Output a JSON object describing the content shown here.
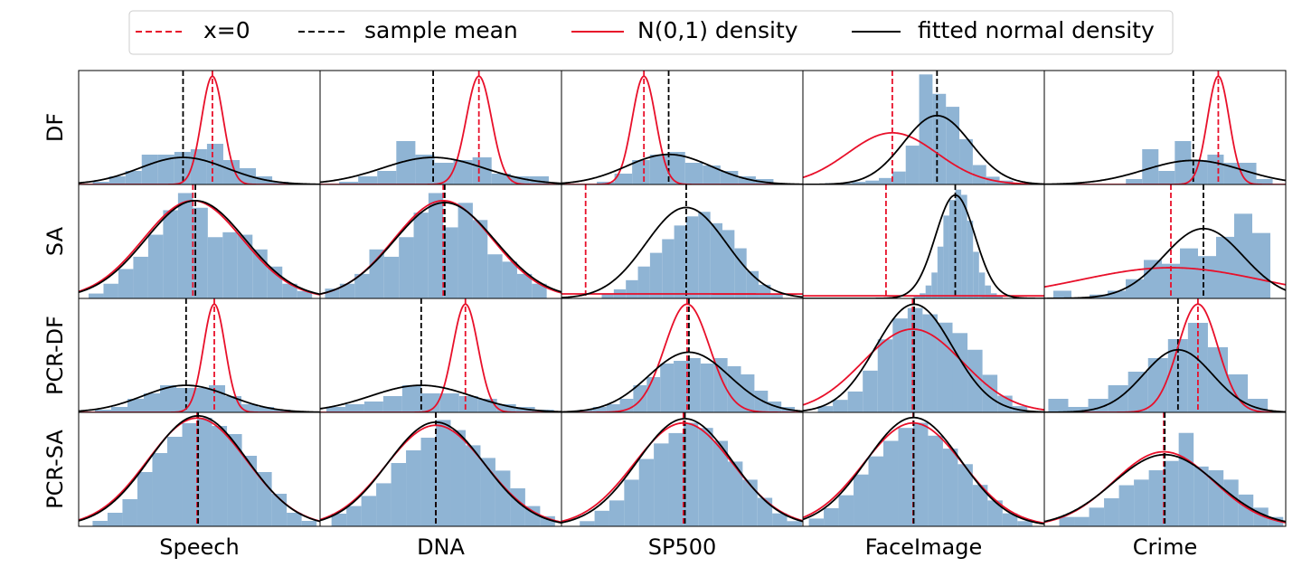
{
  "legend": [
    {
      "name": "x=0",
      "color": "#e8102a",
      "dashed": true
    },
    {
      "name": "sample mean",
      "color": "#000000",
      "dashed": true
    },
    {
      "name": "N(0,1) density",
      "color": "#e8102a",
      "dashed": false
    },
    {
      "name": "fitted normal density",
      "color": "#000000",
      "dashed": false
    }
  ],
  "rows": [
    "DF",
    "SA",
    "PCR-DF",
    "PCR-SA"
  ],
  "columns": [
    "Speech",
    "DNA",
    "SP500",
    "FaceImage",
    "Crime"
  ],
  "hist_color": "#8fb4d4",
  "chart_data": [
    {
      "type": "histogram",
      "xlim": [
        -12.3,
        9.9
      ],
      "ylim": [
        0,
        0.42
      ],
      "x_zero": 0,
      "mean": -2.7,
      "reference": {
        "mu": 0,
        "sigma": 1
      },
      "fitted": {
        "mu": -2.7,
        "sigma": 4
      },
      "bins": [
        -11,
        -9.5,
        -8,
        -6.5,
        -5,
        -3.5,
        -2,
        -0.5,
        1,
        2.5,
        4,
        5.5,
        7
      ],
      "values": [
        0.01,
        0.03,
        0.05,
        0.11,
        0.11,
        0.12,
        0.13,
        0.15,
        0.09,
        0.06,
        0.03,
        0.01
      ]
    },
    {
      "type": "histogram",
      "xlim": [
        -12.5,
        6.5
      ],
      "ylim": [
        0,
        0.42
      ],
      "x_zero": 0,
      "mean": -3.6,
      "reference": {
        "mu": 0,
        "sigma": 1
      },
      "fitted": {
        "mu": -3.6,
        "sigma": 4
      },
      "bins": [
        -11,
        -9.5,
        -8,
        -6.5,
        -5,
        -3.5,
        -2,
        -0.5,
        1,
        2.5,
        4,
        5.5
      ],
      "values": [
        0.01,
        0.03,
        0.05,
        0.16,
        0.11,
        0.08,
        0.09,
        0.1,
        0.04,
        0.03,
        0.03
      ]
    },
    {
      "type": "histogram",
      "xlim": [
        -7,
        13.5
      ],
      "ylim": [
        0,
        0.42
      ],
      "x_zero": 0,
      "mean": 2.1,
      "reference": {
        "mu": 0,
        "sigma": 1
      },
      "fitted": {
        "mu": 2.1,
        "sigma": 3.6
      },
      "bins": [
        -4,
        -2.5,
        -1,
        0.5,
        2,
        3.5,
        5,
        6.5,
        8,
        9.5,
        11
      ],
      "values": [
        0.01,
        0.04,
        0.09,
        0.11,
        0.12,
        0.08,
        0.07,
        0.05,
        0.03,
        0.02
      ]
    },
    {
      "type": "histogram",
      "xlim": [
        -2,
        3.4
      ],
      "ylim": [
        0,
        0.88
      ],
      "x_zero": 0,
      "mean": 1,
      "reference": {
        "mu": 0,
        "sigma": 1
      },
      "fitted": {
        "mu": 1,
        "sigma": 0.75
      },
      "bins": [
        -1.5,
        -1.2,
        -0.9,
        -0.6,
        -0.3,
        0,
        0.3,
        0.6,
        0.9,
        1.2,
        1.5,
        1.8,
        2.1,
        2.4,
        2.7,
        3
      ],
      "values": [
        0.01,
        0.01,
        0.02,
        0.03,
        0.05,
        0.1,
        0.3,
        0.85,
        0.7,
        0.6,
        0.35,
        0.15,
        0.06,
        0.03,
        0.01
      ]
    },
    {
      "type": "histogram",
      "xlim": [
        -16,
        6.2
      ],
      "ylim": [
        0,
        0.42
      ],
      "x_zero": 0,
      "mean": -2.3,
      "reference": {
        "mu": 0,
        "sigma": 1
      },
      "fitted": {
        "mu": -2.3,
        "sigma": 4.5
      },
      "bins": [
        -8.5,
        -7,
        -5.5,
        -4,
        -2.5,
        -1,
        0.5,
        2,
        3.5,
        5
      ],
      "values": [
        0.02,
        0.13,
        0.05,
        0.16,
        0.09,
        0.11,
        0.08,
        0.08,
        0.02
      ]
    },
    {
      "type": "histogram",
      "xlim": [
        -2.3,
        2.56
      ],
      "ylim": [
        0,
        0.465
      ],
      "x_zero": 0,
      "mean": 0.05,
      "reference": {
        "mu": 0,
        "sigma": 1
      },
      "fitted": {
        "mu": 0.05,
        "sigma": 1
      },
      "bins": [
        -2.1,
        -1.8,
        -1.5,
        -1.2,
        -0.9,
        -0.6,
        -0.3,
        0,
        0.3,
        0.6,
        0.9,
        1.2,
        1.5,
        1.8,
        2.1,
        2.4
      ],
      "values": [
        0.02,
        0.06,
        0.12,
        0.17,
        0.26,
        0.36,
        0.43,
        0.37,
        0.25,
        0.27,
        0.26,
        0.2,
        0.13,
        0.06,
        0.03
      ]
    },
    {
      "type": "histogram",
      "xlim": [
        -2.5,
        2.4
      ],
      "ylim": [
        0,
        0.465
      ],
      "x_zero": 0,
      "mean": 0.03,
      "reference": {
        "mu": 0,
        "sigma": 1
      },
      "fitted": {
        "mu": 0.03,
        "sigma": 1.02
      },
      "bins": [
        -2.4,
        -2.1,
        -1.8,
        -1.5,
        -1.2,
        -0.9,
        -0.6,
        -0.3,
        0,
        0.3,
        0.6,
        0.9,
        1.2,
        1.5,
        1.8,
        2.1
      ],
      "values": [
        0.04,
        0.06,
        0.1,
        0.2,
        0.17,
        0.25,
        0.35,
        0.43,
        0.29,
        0.39,
        0.32,
        0.18,
        0.15,
        0.1,
        0.06
      ]
    },
    {
      "type": "histogram",
      "xlim": [
        -6,
        54
      ],
      "ylim": [
        0,
        0.05
      ],
      "x_zero": 0,
      "mean": 25,
      "reference": {
        "mu": 0,
        "sigma": 200
      },
      "fitted": {
        "mu": 25,
        "sigma": 10
      },
      "bins": [
        4,
        7,
        10,
        13,
        16,
        19,
        22,
        25,
        28,
        31,
        34,
        37,
        40,
        43,
        46,
        49
      ],
      "values": [
        0.002,
        0.004,
        0.008,
        0.014,
        0.02,
        0.026,
        0.032,
        0.036,
        0.038,
        0.033,
        0.03,
        0.022,
        0.012,
        0.006,
        0.002
      ]
    },
    {
      "type": "histogram",
      "xlim": [
        -4.2,
        8
      ],
      "ylim": [
        0,
        0.44
      ],
      "x_zero": 0,
      "mean": 3.5,
      "reference": {
        "mu": 0,
        "sigma": 40
      },
      "fitted": {
        "mu": 3.5,
        "sigma": 1
      },
      "bins": [
        1.4,
        1.7,
        2,
        2.3,
        2.6,
        2.9,
        3.2,
        3.5,
        3.8,
        4.1,
        4.4,
        4.7,
        5,
        5.3,
        5.6,
        5.9
      ],
      "values": [
        0.01,
        0.02,
        0.05,
        0.1,
        0.2,
        0.32,
        0.38,
        0.42,
        0.4,
        0.3,
        0.18,
        0.1,
        0.05,
        0.02,
        0.01
      ]
    },
    {
      "type": "histogram",
      "xlim": [
        -7,
        6.35
      ],
      "ylim": [
        0,
        0.296
      ],
      "x_zero": 0,
      "mean": 1.8,
      "reference": {
        "mu": 0,
        "sigma": 5
      },
      "fitted": {
        "mu": 1.8,
        "sigma": 2.2
      },
      "bins": [
        -6.5,
        -5.5,
        -4.5,
        -3.5,
        -2.5,
        -1.5,
        -0.5,
        0.5,
        1.5,
        2.5,
        3.5,
        4.5,
        5.5
      ],
      "values": [
        0.02,
        0,
        0.01,
        0.02,
        0.05,
        0.1,
        0.09,
        0.13,
        0.11,
        0.16,
        0.22,
        0.17
      ]
    },
    {
      "type": "histogram",
      "xlim": [
        -12.5,
        9.75
      ],
      "ylim": [
        0,
        0.42
      ],
      "x_zero": 0,
      "mean": -2.6,
      "reference": {
        "mu": 0,
        "sigma": 1
      },
      "fitted": {
        "mu": -2.6,
        "sigma": 4
      },
      "bins": [
        -11,
        -9.5,
        -8,
        -6.5,
        -5,
        -3.5,
        -2,
        -0.5,
        1,
        2.5,
        4,
        5.5,
        7
      ],
      "values": [
        0.01,
        0.02,
        0.05,
        0.07,
        0.1,
        0.09,
        0.09,
        0.1,
        0.06,
        0.03,
        0.02,
        0.01
      ]
    },
    {
      "type": "histogram",
      "xlim": [
        -11.5,
        7.6
      ],
      "ylim": [
        0,
        0.42
      ],
      "x_zero": 0,
      "mean": -3.5,
      "reference": {
        "mu": 0,
        "sigma": 1
      },
      "fitted": {
        "mu": -3.5,
        "sigma": 4
      },
      "bins": [
        -11,
        -9.5,
        -8,
        -6.5,
        -5,
        -3.5,
        -2,
        -0.5,
        1,
        2.5,
        4,
        5.5,
        7
      ],
      "values": [
        0.02,
        0.03,
        0.04,
        0.06,
        0.1,
        0.07,
        0.07,
        0.06,
        0.05,
        0.03,
        0.02,
        0.01
      ]
    },
    {
      "type": "histogram",
      "xlim": [
        -5.6,
        5.16
      ],
      "ylim": [
        0,
        0.42
      ],
      "x_zero": 0,
      "mean": 0.08,
      "reference": {
        "mu": 0,
        "sigma": 1
      },
      "fitted": {
        "mu": 0.08,
        "sigma": 1.8
      },
      "bins": [
        -4.8,
        -4.2,
        -3.6,
        -3,
        -2.4,
        -1.8,
        -1.2,
        -0.6,
        0,
        0.6,
        1.2,
        1.8,
        2.4,
        3,
        3.6,
        4.2,
        4.8
      ],
      "values": [
        0.01,
        0.02,
        0.03,
        0.05,
        0.1,
        0.13,
        0.18,
        0.19,
        0.2,
        0.18,
        0.2,
        0.17,
        0.14,
        0.08,
        0.04,
        0.02
      ]
    },
    {
      "type": "histogram",
      "xlim": [
        -2.2,
        2.64
      ],
      "ylim": [
        0,
        0.546
      ],
      "x_zero": 0,
      "mean": 0.03,
      "reference": {
        "mu": 0,
        "sigma": 1
      },
      "fitted": {
        "mu": 0.03,
        "sigma": 0.77
      },
      "bins": [
        -1.9,
        -1.6,
        -1.3,
        -1,
        -0.7,
        -0.4,
        -0.1,
        0.2,
        0.5,
        0.8,
        1.1,
        1.4,
        1.7,
        2,
        2.3
      ],
      "values": [
        0.03,
        0.06,
        0.1,
        0.2,
        0.35,
        0.45,
        0.5,
        0.47,
        0.43,
        0.38,
        0.3,
        0.18,
        0.08,
        0.03
      ]
    },
    {
      "type": "histogram",
      "xlim": [
        -7.7,
        4.4
      ],
      "ylim": [
        0,
        0.42
      ],
      "x_zero": 0,
      "mean": -1,
      "reference": {
        "mu": 0,
        "sigma": 1
      },
      "fitted": {
        "mu": -1,
        "sigma": 1.73
      },
      "bins": [
        -7.5,
        -6.5,
        -5.5,
        -4.5,
        -3.5,
        -2.5,
        -1.5,
        -0.5,
        0.5,
        1.5,
        2.5,
        3.5
      ],
      "values": [
        0.05,
        0.02,
        0.05,
        0.1,
        0.15,
        0.2,
        0.27,
        0.33,
        0.24,
        0.14,
        0.05
      ]
    },
    {
      "type": "histogram",
      "xlim": [
        -2.38,
        2.47
      ],
      "ylim": [
        0,
        0.42
      ],
      "x_zero": 0,
      "mean": 0.02,
      "reference": {
        "mu": 0,
        "sigma": 1
      },
      "fitted": {
        "mu": 0.02,
        "sigma": 0.98
      },
      "bins": [
        -2.1,
        -1.8,
        -1.5,
        -1.2,
        -0.9,
        -0.6,
        -0.3,
        0,
        0.3,
        0.6,
        0.9,
        1.2,
        1.5,
        1.8,
        2.1,
        2.4
      ],
      "values": [
        0.02,
        0.05,
        0.1,
        0.2,
        0.27,
        0.33,
        0.38,
        0.4,
        0.37,
        0.34,
        0.26,
        0.2,
        0.12,
        0.05,
        0.02
      ]
    },
    {
      "type": "histogram",
      "xlim": [
        -2.33,
        2.53
      ],
      "ylim": [
        0,
        0.45
      ],
      "x_zero": 0,
      "mean": 0,
      "reference": {
        "mu": 0,
        "sigma": 1
      },
      "fitted": {
        "mu": 0,
        "sigma": 0.97
      },
      "bins": [
        -2.1,
        -1.8,
        -1.5,
        -1.2,
        -0.9,
        -0.6,
        -0.3,
        0,
        0.3,
        0.6,
        0.9,
        1.2,
        1.5,
        1.8,
        2.1,
        2.4
      ],
      "values": [
        0.05,
        0.08,
        0.12,
        0.17,
        0.25,
        0.3,
        0.35,
        0.42,
        0.38,
        0.32,
        0.27,
        0.22,
        0.15,
        0.08,
        0.04
      ]
    },
    {
      "type": "histogram",
      "xlim": [
        -2.47,
        2.42
      ],
      "ylim": [
        0,
        0.44
      ],
      "x_zero": 0,
      "mean": 0.03,
      "reference": {
        "mu": 0,
        "sigma": 1
      },
      "fitted": {
        "mu": 0.03,
        "sigma": 0.96
      },
      "bins": [
        -2.1,
        -1.8,
        -1.5,
        -1.2,
        -0.9,
        -0.6,
        -0.3,
        0,
        0.3,
        0.6,
        0.9,
        1.2,
        1.5,
        1.8,
        2.1,
        2.4
      ],
      "values": [
        0.02,
        0.06,
        0.1,
        0.18,
        0.26,
        0.32,
        0.36,
        0.4,
        0.38,
        0.33,
        0.25,
        0.18,
        0.11,
        0.05,
        0.02
      ]
    },
    {
      "type": "histogram",
      "xlim": [
        -2.22,
        2.64
      ],
      "ylim": [
        0,
        0.44
      ],
      "x_zero": 0,
      "mean": 0.01,
      "reference": {
        "mu": 0,
        "sigma": 1
      },
      "fitted": {
        "mu": 0.01,
        "sigma": 0.95
      },
      "bins": [
        -2.1,
        -1.8,
        -1.5,
        -1.2,
        -0.9,
        -0.6,
        -0.3,
        0,
        0.3,
        0.6,
        0.9,
        1.2,
        1.5,
        1.8,
        2.1,
        2.4
      ],
      "values": [
        0.03,
        0.07,
        0.12,
        0.2,
        0.27,
        0.33,
        0.38,
        0.4,
        0.35,
        0.3,
        0.24,
        0.16,
        0.1,
        0.05,
        0.02
      ]
    },
    {
      "type": "histogram",
      "xlim": [
        -2.4,
        2.45
      ],
      "ylim": [
        0,
        0.61
      ],
      "x_zero": 0,
      "mean": 0.02,
      "reference": {
        "mu": 0,
        "sigma": 1
      },
      "fitted": {
        "mu": 0.02,
        "sigma": 1.04
      },
      "bins": [
        -2.1,
        -1.8,
        -1.5,
        -1.2,
        -0.9,
        -0.6,
        -0.3,
        0,
        0.3,
        0.6,
        0.9,
        1.2,
        1.5,
        1.8,
        2.1,
        2.4
      ],
      "values": [
        0.05,
        0.05,
        0.1,
        0.15,
        0.22,
        0.25,
        0.3,
        0.35,
        0.5,
        0.32,
        0.3,
        0.25,
        0.17,
        0.1,
        0.05
      ]
    }
  ]
}
